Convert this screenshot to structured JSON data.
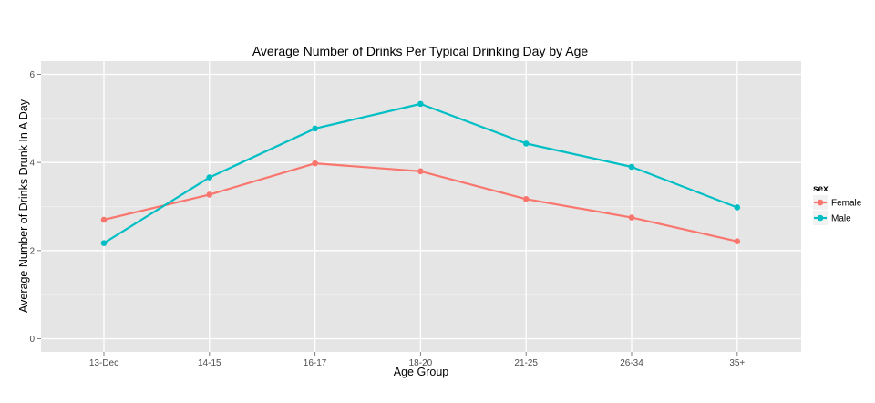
{
  "chart_data": {
    "type": "line",
    "title": "Average Number of Drinks Per Typical Drinking Day by Age",
    "xlabel": "Age Group",
    "ylabel": "Average Number of Drinks Drunk In A Day",
    "categories": [
      "13-Dec",
      "14-15",
      "16-17",
      "18-20",
      "21-25",
      "26-34",
      "35+"
    ],
    "ylim": [
      -0.3,
      6.3
    ],
    "yticks": [
      0,
      2,
      4,
      6
    ],
    "grid": true,
    "legend": {
      "title": "sex",
      "position": "right"
    },
    "series": [
      {
        "name": "Female",
        "color": "#F8766D",
        "values": [
          2.7,
          3.27,
          3.98,
          3.8,
          3.17,
          2.75,
          2.21
        ]
      },
      {
        "name": "Male",
        "color": "#00BFC4",
        "values": [
          2.17,
          3.66,
          4.77,
          5.33,
          4.43,
          3.9,
          2.98
        ]
      }
    ]
  }
}
